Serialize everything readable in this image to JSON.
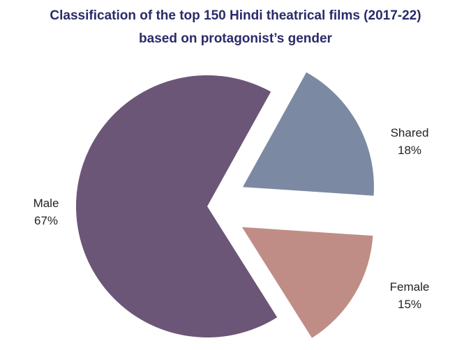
{
  "chart_data": {
    "type": "pie",
    "title_lines": [
      "Classification of the top 150 Hindi theatrical films (2017-22)",
      "based on protagonist’s gender"
    ],
    "slices": [
      {
        "label": "Male",
        "value": 67,
        "value_label": "67%",
        "color": "#6b5677"
      },
      {
        "label": "Shared",
        "value": 18,
        "value_label": "18%",
        "color": "#7b8aa2"
      },
      {
        "label": "Female",
        "value": 15,
        "value_label": "15%",
        "color": "#c08d86"
      }
    ],
    "exploded": [
      "Shared",
      "Female"
    ],
    "legend": "none"
  }
}
